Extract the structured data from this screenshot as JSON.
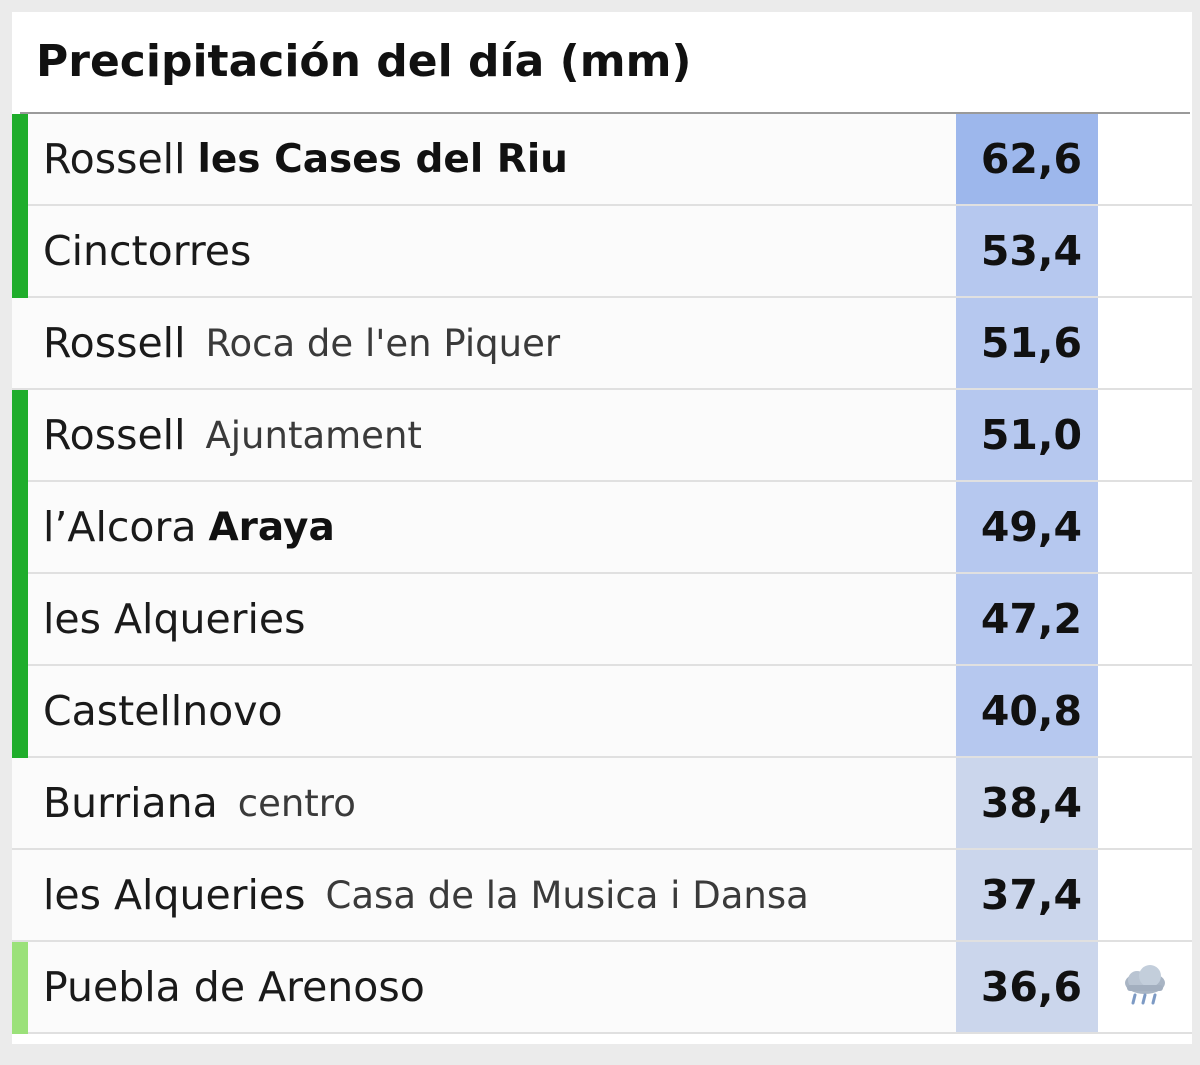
{
  "panel": {
    "title": "Precipitación del día (mm)"
  },
  "colors": {
    "bar_green": "#1fad2b",
    "bar_light_green": "#9be17a",
    "value_high": "#9db7ec",
    "value_mid": "#b6c8ef",
    "value_low": "#cbd6ec"
  },
  "rows": [
    {
      "place": "Rossell",
      "sub": "les Cases del Riu",
      "sub_style": "bold",
      "value": "62,6",
      "bar": "green",
      "level": "high",
      "icon": ""
    },
    {
      "place": "Cinctorres",
      "sub": "",
      "sub_style": "",
      "value": "53,4",
      "bar": "green",
      "level": "mid",
      "icon": ""
    },
    {
      "place": "Rossell",
      "sub": "Roca de l'en Piquer",
      "sub_style": "normal",
      "value": "51,6",
      "bar": "none",
      "level": "mid",
      "icon": ""
    },
    {
      "place": "Rossell",
      "sub": "Ajuntament",
      "sub_style": "normal",
      "value": "51,0",
      "bar": "green",
      "level": "mid",
      "icon": ""
    },
    {
      "place": "l’Alcora",
      "sub": "Araya",
      "sub_style": "bold",
      "value": "49,4",
      "bar": "green",
      "level": "mid",
      "icon": ""
    },
    {
      "place": "les Alqueries",
      "sub": "",
      "sub_style": "",
      "value": "47,2",
      "bar": "green",
      "level": "mid",
      "icon": ""
    },
    {
      "place": "Castellnovo",
      "sub": "",
      "sub_style": "",
      "value": "40,8",
      "bar": "green",
      "level": "mid",
      "icon": ""
    },
    {
      "place": "Burriana",
      "sub": "centro",
      "sub_style": "normal",
      "value": "38,4",
      "bar": "none",
      "level": "low",
      "icon": ""
    },
    {
      "place": "les Alqueries",
      "sub": "Casa de la Musica i Dansa",
      "sub_style": "normal",
      "value": "37,4",
      "bar": "none",
      "level": "low",
      "icon": ""
    },
    {
      "place": "Puebla de Arenoso",
      "sub": "",
      "sub_style": "",
      "value": "36,6",
      "bar": "light_green",
      "level": "low",
      "icon": "rain-cloud-icon"
    }
  ]
}
